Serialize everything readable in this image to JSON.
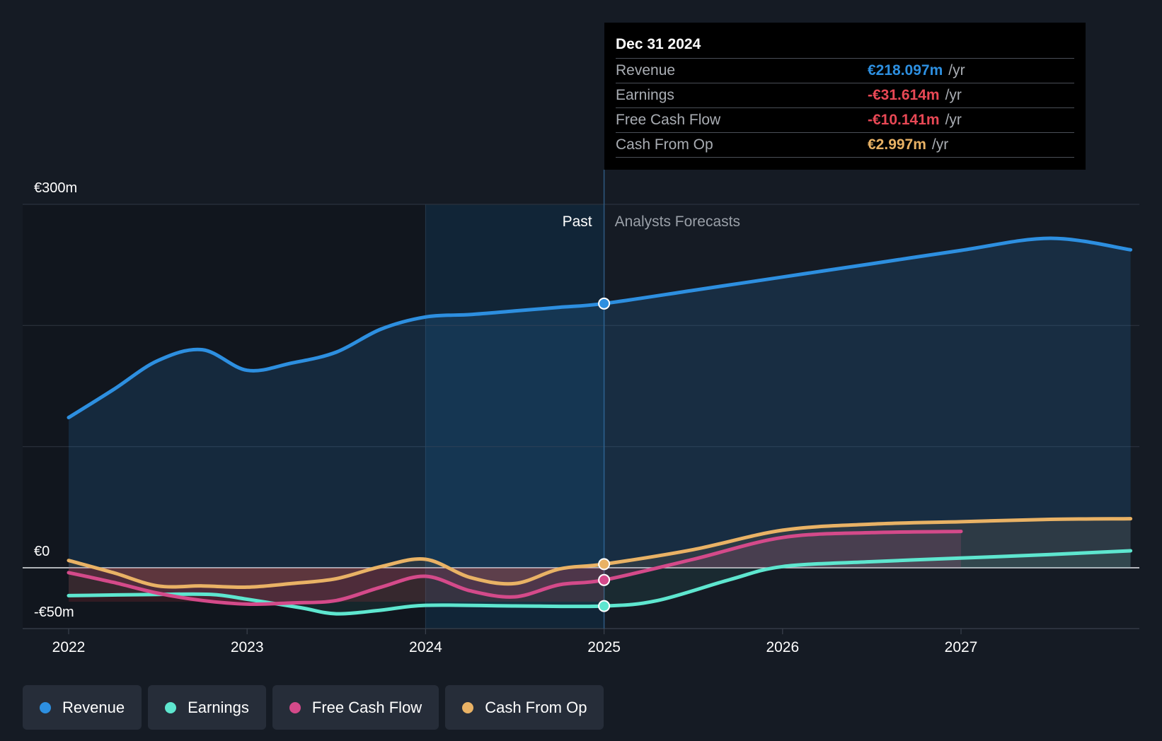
{
  "chart_data": {
    "type": "line",
    "y_tick_labels": [
      "€300m",
      "€0",
      "-€50m"
    ],
    "ylim": [
      -50,
      300
    ],
    "x_tick_labels": [
      "2022",
      "2023",
      "2024",
      "2025",
      "2026",
      "2027"
    ],
    "xlim": [
      2021.75,
      2027.95
    ],
    "region_labels": {
      "past": "Past",
      "forecast": "Analysts Forecasts"
    },
    "divider_x": 2025.0,
    "series": [
      {
        "name": "Revenue",
        "color": "#2d8fe0",
        "points": [
          [
            2022.0,
            124
          ],
          [
            2022.25,
            147
          ],
          [
            2022.5,
            171
          ],
          [
            2022.75,
            180
          ],
          [
            2023.0,
            163
          ],
          [
            2023.25,
            169
          ],
          [
            2023.5,
            178
          ],
          [
            2023.75,
            197
          ],
          [
            2024.0,
            207
          ],
          [
            2024.25,
            209
          ],
          [
            2024.5,
            212
          ],
          [
            2024.75,
            215
          ],
          [
            2025.0,
            218.1
          ],
          [
            2025.5,
            229
          ],
          [
            2026.0,
            240
          ],
          [
            2026.5,
            251
          ],
          [
            2027.0,
            262
          ],
          [
            2027.5,
            272
          ],
          [
            2027.95,
            262.5
          ]
        ]
      },
      {
        "name": "Earnings",
        "color": "#5ee6cf",
        "points": [
          [
            2022.0,
            -23
          ],
          [
            2022.5,
            -22
          ],
          [
            2022.8,
            -22
          ],
          [
            2023.0,
            -26
          ],
          [
            2023.3,
            -33
          ],
          [
            2023.5,
            -38
          ],
          [
            2023.75,
            -35
          ],
          [
            2024.0,
            -31
          ],
          [
            2024.5,
            -31.5
          ],
          [
            2025.0,
            -31.6
          ],
          [
            2025.3,
            -27
          ],
          [
            2025.7,
            -10
          ],
          [
            2026.0,
            1
          ],
          [
            2026.5,
            5
          ],
          [
            2027.0,
            8
          ],
          [
            2027.5,
            11
          ],
          [
            2027.95,
            14
          ]
        ]
      },
      {
        "name": "Free Cash Flow",
        "color": "#d44a8a",
        "points": [
          [
            2022.0,
            -4
          ],
          [
            2022.25,
            -12
          ],
          [
            2022.5,
            -21
          ],
          [
            2022.75,
            -27
          ],
          [
            2023.0,
            -30
          ],
          [
            2023.25,
            -29
          ],
          [
            2023.5,
            -27
          ],
          [
            2023.75,
            -16
          ],
          [
            2024.0,
            -7
          ],
          [
            2024.25,
            -19
          ],
          [
            2024.5,
            -24
          ],
          [
            2024.75,
            -14
          ],
          [
            2025.0,
            -10.1
          ],
          [
            2025.5,
            7
          ],
          [
            2026.0,
            25
          ],
          [
            2026.5,
            29
          ],
          [
            2027.0,
            30
          ]
        ]
      },
      {
        "name": "Cash From Op",
        "color": "#e9b265",
        "points": [
          [
            2022.0,
            6
          ],
          [
            2022.25,
            -4
          ],
          [
            2022.5,
            -15
          ],
          [
            2022.75,
            -15
          ],
          [
            2023.0,
            -16
          ],
          [
            2023.25,
            -13
          ],
          [
            2023.5,
            -9
          ],
          [
            2023.75,
            1
          ],
          [
            2024.0,
            7
          ],
          [
            2024.25,
            -8
          ],
          [
            2024.5,
            -13
          ],
          [
            2024.75,
            -1
          ],
          [
            2025.0,
            3
          ],
          [
            2025.5,
            15
          ],
          [
            2026.0,
            31
          ],
          [
            2026.5,
            36
          ],
          [
            2027.0,
            38
          ],
          [
            2027.5,
            40
          ],
          [
            2027.95,
            40.5
          ]
        ]
      }
    ]
  },
  "tooltip": {
    "date": "Dec 31 2024",
    "unit": "/yr",
    "rows": [
      {
        "label": "Revenue",
        "value": "€218.097m",
        "color": "#2d8fe0"
      },
      {
        "label": "Earnings",
        "value": "-€31.614m",
        "color": "#e84855"
      },
      {
        "label": "Free Cash Flow",
        "value": "-€10.141m",
        "color": "#e84855"
      },
      {
        "label": "Cash From Op",
        "value": "€2.997m",
        "color": "#e9b265"
      }
    ]
  },
  "legend": [
    {
      "label": "Revenue",
      "color": "#2d8fe0"
    },
    {
      "label": "Earnings",
      "color": "#5ee6cf"
    },
    {
      "label": "Free Cash Flow",
      "color": "#d44a8a"
    },
    {
      "label": "Cash From Op",
      "color": "#e9b265"
    }
  ]
}
